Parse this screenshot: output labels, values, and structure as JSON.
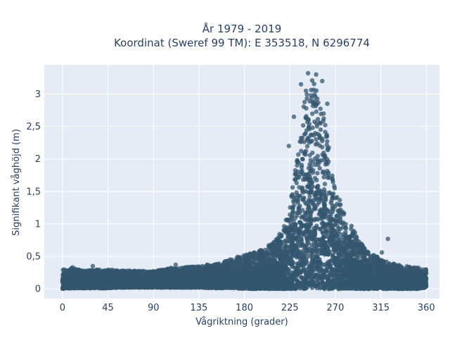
{
  "chart_data": {
    "type": "scatter",
    "title_lines": [
      "År 1979 - 2019",
      "Koordinat (Sweref 99 TM): E 353518, N 6296774"
    ],
    "xlabel": "Vågriktning (grader)",
    "ylabel": "Signifikant våghöjd (m)",
    "xlim": [
      -18,
      373
    ],
    "ylim": [
      -0.15,
      3.45
    ],
    "x_ticks": [
      0,
      45,
      90,
      135,
      180,
      225,
      270,
      315,
      360
    ],
    "x_tick_labels": [
      "0",
      "45",
      "90",
      "135",
      "180",
      "225",
      "270",
      "315",
      "360"
    ],
    "y_ticks": [
      0,
      0.5,
      1,
      1.5,
      2,
      2.5,
      3
    ],
    "y_tick_labels": [
      "0",
      "0,5",
      "1",
      "1,5",
      "2",
      "2,5",
      "3"
    ],
    "grid": true,
    "legend": false,
    "colors": {
      "marker": "#34566e",
      "plot_bg": "#e5ecf6",
      "grid": "#ffffff"
    },
    "envelope": {
      "x": [
        0,
        10,
        20,
        30,
        45,
        60,
        75,
        90,
        100,
        110,
        120,
        135,
        150,
        160,
        170,
        180,
        190,
        200,
        210,
        215,
        220,
        225,
        230,
        235,
        240,
        245,
        250,
        255,
        260,
        265,
        270,
        275,
        280,
        285,
        290,
        295,
        300,
        310,
        315,
        320,
        330,
        340,
        350,
        360
      ],
      "y_min": [
        0,
        0.01,
        0.01,
        0.01,
        0.01,
        0.02,
        0.02,
        0.02,
        0.02,
        0.02,
        0.02,
        0.02,
        0.01,
        0.01,
        0.01,
        0,
        0,
        0,
        0,
        0,
        0,
        0,
        0,
        0,
        0,
        0,
        0,
        0,
        0,
        0,
        0,
        0,
        0,
        0,
        0,
        0,
        0,
        0,
        0,
        0,
        0,
        0,
        0,
        0.02
      ],
      "y_max": [
        0.3,
        0.32,
        0.28,
        0.3,
        0.3,
        0.28,
        0.28,
        0.27,
        0.3,
        0.33,
        0.33,
        0.36,
        0.38,
        0.42,
        0.48,
        0.52,
        0.56,
        0.62,
        0.75,
        0.85,
        1.0,
        1.3,
        1.8,
        2.5,
        3.0,
        3.3,
        3.2,
        3.0,
        2.6,
        2.0,
        1.55,
        1.35,
        1.15,
        1.0,
        0.85,
        0.72,
        0.6,
        0.5,
        0.48,
        0.42,
        0.38,
        0.35,
        0.33,
        0.3
      ]
    },
    "outliers": [
      {
        "x": 322,
        "y": 0.77
      },
      {
        "x": 316,
        "y": 0.56
      },
      {
        "x": 243,
        "y": 3.32
      },
      {
        "x": 251,
        "y": 3.3
      },
      {
        "x": 257,
        "y": 3.2
      },
      {
        "x": 236,
        "y": 3.15
      },
      {
        "x": 229,
        "y": 2.65
      },
      {
        "x": 262,
        "y": 2.85
      },
      {
        "x": 224,
        "y": 2.2
      },
      {
        "x": 112,
        "y": 0.37
      },
      {
        "x": 30,
        "y": 0.35
      },
      {
        "x": 10,
        "y": 0.33
      }
    ]
  }
}
